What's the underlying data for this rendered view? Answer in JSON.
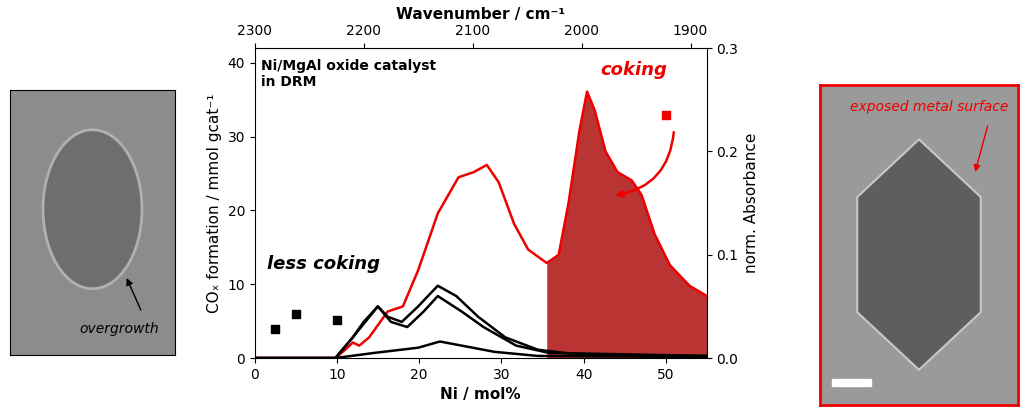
{
  "chart_data": {
    "type": "scatter",
    "x_label": "Ni / mol%",
    "y_label": "COₓ formation / mmol gcat⁻¹",
    "xlim": [
      0,
      55
    ],
    "xticks": [
      0,
      10,
      20,
      30,
      40,
      50
    ],
    "ylim": [
      0,
      42
    ],
    "yticks": [
      0,
      10,
      20,
      30,
      40
    ],
    "x2_label": "Wavenumber / cm⁻¹",
    "x2lim": [
      2300,
      1885
    ],
    "x2ticks": [
      2300,
      2200,
      2100,
      2000,
      1900
    ],
    "y2_label": "norm. Absorbance",
    "y2lim": [
      0,
      0.3
    ],
    "y2ticks": [
      0.0,
      0.1,
      0.2,
      0.3
    ],
    "series": [
      {
        "type": "scatter",
        "marker": "square",
        "color": "#000000",
        "x": [
          2.5,
          5,
          10
        ],
        "values": [
          4,
          6,
          5.1
        ]
      },
      {
        "type": "scatter",
        "marker": "square",
        "color": "#ee0000",
        "x": [
          50
        ],
        "values": [
          33
        ]
      },
      {
        "type": "line",
        "axis": "y2",
        "color": "#ee0000",
        "highlight_from": 2032,
        "x": [
          2300,
          2226,
          2217,
          2210,
          2204,
          2195,
          2178,
          2164,
          2150,
          2132,
          2113,
          2099,
          2087,
          2076,
          2062,
          2049,
          2032,
          2021,
          2012,
          2002,
          1995,
          1988,
          1978,
          1967,
          1954,
          1945,
          1933,
          1919,
          1901,
          1885
        ],
        "values": [
          0,
          0,
          0.008,
          0.015,
          0.012,
          0.02,
          0.045,
          0.05,
          0.085,
          0.14,
          0.175,
          0.18,
          0.187,
          0.17,
          0.13,
          0.105,
          0.092,
          0.1,
          0.15,
          0.22,
          0.258,
          0.24,
          0.2,
          0.18,
          0.172,
          0.158,
          0.12,
          0.09,
          0.07,
          0.06
        ]
      },
      {
        "type": "line",
        "axis": "y2",
        "color": "#000000",
        "x": [
          2300,
          2226,
          2210,
          2200,
          2187,
          2178,
          2165,
          2150,
          2132,
          2115,
          2095,
          2070,
          2040,
          2000,
          1885
        ],
        "values": [
          0,
          0,
          0.02,
          0.035,
          0.05,
          0.04,
          0.035,
          0.05,
          0.07,
          0.06,
          0.04,
          0.02,
          0.008,
          0.003,
          0.002
        ]
      },
      {
        "type": "line",
        "axis": "y2",
        "color": "#000000",
        "x": [
          2300,
          2226,
          2210,
          2187,
          2175,
          2160,
          2145,
          2132,
          2110,
          2090,
          2060,
          2030,
          1885
        ],
        "values": [
          0,
          0,
          0.02,
          0.05,
          0.035,
          0.03,
          0.045,
          0.06,
          0.045,
          0.03,
          0.012,
          0.005,
          0.002
        ]
      },
      {
        "type": "line",
        "axis": "y2",
        "color": "#000000",
        "x": [
          2300,
          2226,
          2190,
          2150,
          2130,
          2110,
          2080,
          2040,
          1885
        ],
        "values": [
          0,
          0,
          0.005,
          0.01,
          0.016,
          0.012,
          0.006,
          0.002,
          0.001
        ]
      }
    ],
    "annotations": [
      {
        "text": "Ni/MgAl oxide catalyst\nin DRM",
        "color": "#000000"
      },
      {
        "text": "less coking",
        "color": "#000000"
      },
      {
        "text": "coking",
        "color": "#ee0000"
      }
    ],
    "images": [
      {
        "annotation": "overgrowth",
        "color": "#000000"
      },
      {
        "annotation": "exposed metal surface",
        "color": "#ee0000"
      }
    ]
  }
}
